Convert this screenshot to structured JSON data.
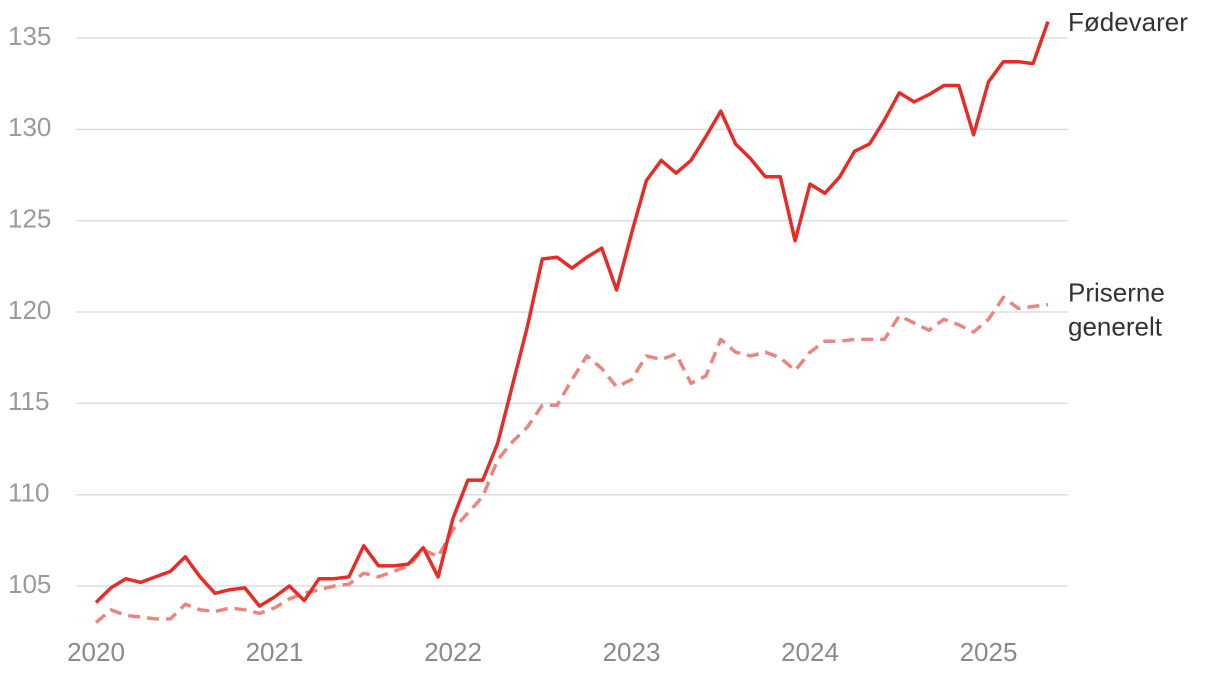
{
  "chart_data": {
    "type": "line",
    "categories": [
      "2020",
      null,
      null,
      null,
      null,
      null,
      null,
      null,
      null,
      null,
      null,
      null,
      "2021",
      null,
      null,
      null,
      null,
      null,
      null,
      null,
      null,
      null,
      null,
      null,
      "2022",
      null,
      null,
      null,
      null,
      null,
      null,
      null,
      null,
      null,
      null,
      null,
      "2023",
      null,
      null,
      null,
      null,
      null,
      null,
      null,
      null,
      null,
      null,
      null,
      "2024",
      null,
      null,
      null,
      null,
      null,
      null,
      null,
      null,
      null,
      null,
      null,
      "2025",
      null,
      null,
      null,
      null
    ],
    "series": [
      {
        "name": "Fødevarer",
        "color": "#e52d27",
        "dashed": false,
        "values": [
          104.1,
          104.9,
          105.4,
          105.2,
          105.5,
          105.8,
          106.6,
          105.5,
          104.6,
          104.8,
          104.9,
          103.9,
          104.4,
          105.0,
          104.2,
          105.4,
          105.4,
          105.5,
          107.2,
          106.1,
          106.1,
          106.2,
          107.1,
          105.5,
          108.7,
          110.8,
          110.8,
          112.8,
          116.0,
          119.2,
          122.9,
          123.0,
          122.4,
          123.0,
          123.5,
          121.2,
          124.3,
          127.2,
          128.3,
          127.6,
          128.3,
          129.6,
          131.0,
          129.2,
          128.4,
          127.4,
          127.4,
          123.9,
          127.0,
          126.5,
          127.4,
          128.8,
          129.2,
          130.5,
          132.0,
          131.5,
          131.9,
          132.4,
          132.4,
          129.7,
          132.6,
          133.7,
          133.7,
          133.6,
          135.9
        ]
      },
      {
        "name": "Priserne generelt",
        "color": "#e8867f",
        "dashed": true,
        "values": [
          103.0,
          103.7,
          103.4,
          103.3,
          103.2,
          103.2,
          104.0,
          103.7,
          103.6,
          103.8,
          103.7,
          103.5,
          103.8,
          104.3,
          104.6,
          104.8,
          105.0,
          105.1,
          105.7,
          105.5,
          105.8,
          106.1,
          107.0,
          106.6,
          108.1,
          109.0,
          109.9,
          111.9,
          112.9,
          113.7,
          114.9,
          114.9,
          116.3,
          117.6,
          116.9,
          115.9,
          116.3,
          117.6,
          117.4,
          117.7,
          116.1,
          116.5,
          118.5,
          117.8,
          117.6,
          117.8,
          117.5,
          116.8,
          117.8,
          118.4,
          118.4,
          118.5,
          118.5,
          118.5,
          119.8,
          119.4,
          119.0,
          119.6,
          119.3,
          118.9,
          119.6,
          120.8,
          120.2,
          120.3,
          120.4
        ]
      }
    ],
    "ylim": [
      102.5,
      136.5
    ],
    "yticks": [
      105,
      110,
      115,
      120,
      125,
      130,
      135
    ],
    "grid": true
  }
}
